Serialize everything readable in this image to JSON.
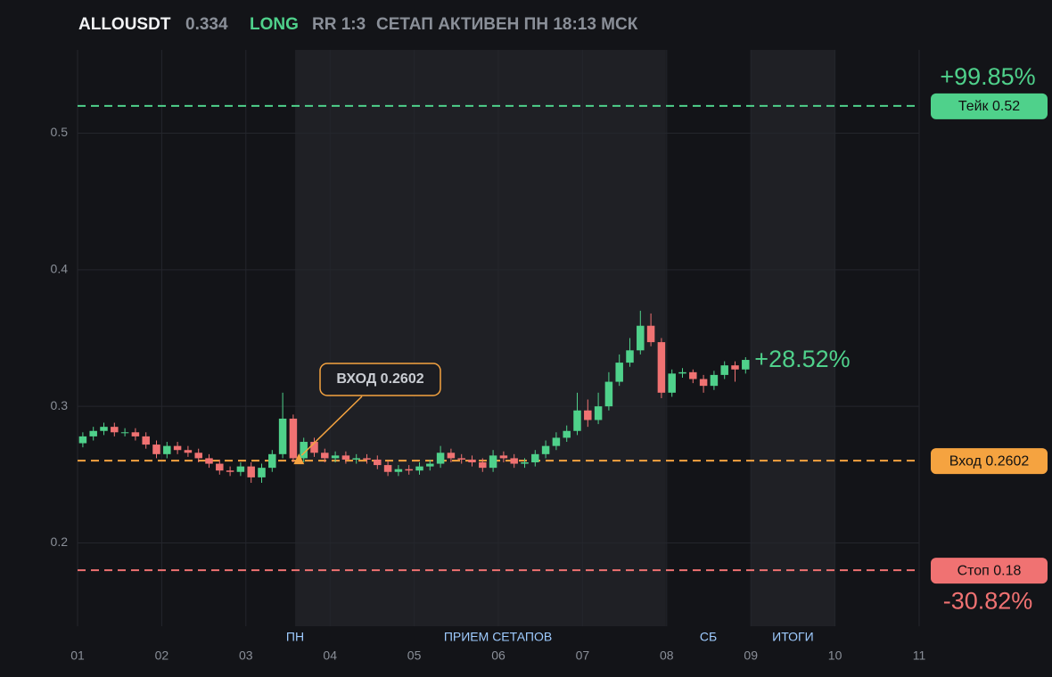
{
  "chart_data": {
    "type": "candlestick",
    "title": "ALLOUSDT",
    "last_price": 0.334,
    "side": "LONG",
    "rr": "RR 1:3",
    "status": "СЕТАП АКТИВЕН ПН 18:13 МСК",
    "up_color": "#4fd18b",
    "down_color": "#f07272",
    "xlim": [
      1,
      11
    ],
    "ylim": [
      0.139,
      0.561
    ],
    "xticks": [
      {
        "value": 1,
        "label": "01"
      },
      {
        "value": 2,
        "label": "02"
      },
      {
        "value": 3,
        "label": "03"
      },
      {
        "value": 4,
        "label": "04"
      },
      {
        "value": 5,
        "label": "05"
      },
      {
        "value": 6,
        "label": "06"
      },
      {
        "value": 7,
        "label": "07"
      },
      {
        "value": 8,
        "label": "08"
      },
      {
        "value": 9,
        "label": "09"
      },
      {
        "value": 10,
        "label": "10"
      },
      {
        "value": 11,
        "label": "11"
      }
    ],
    "yticks": [
      0.2,
      0.3,
      0.4,
      0.5
    ],
    "grid": true,
    "sessions": [
      {
        "label": "ПН",
        "from": 3.585,
        "to": 4.0,
        "shaded": true
      },
      {
        "label": "ПРИЕМ СЕТАПОВ",
        "from": 4.0,
        "to": 7.99,
        "shaded": true
      },
      {
        "label": "СБ",
        "from": 7.99,
        "to": 9.0,
        "shaded": false
      },
      {
        "label": "ИТОГИ",
        "from": 9.0,
        "to": 10.0,
        "shaded": true
      }
    ],
    "x": [
      1.0625,
      1.1875,
      1.3125,
      1.4375,
      1.5625,
      1.6875,
      1.8125,
      1.9375,
      2.0625,
      2.1875,
      2.3125,
      2.4375,
      2.5625,
      2.6875,
      2.8125,
      2.9375,
      3.0625,
      3.1875,
      3.3125,
      3.4375,
      3.5625,
      3.6875,
      3.8125,
      3.9375,
      4.0625,
      4.1875,
      4.3125,
      4.4375,
      4.5625,
      4.6875,
      4.8125,
      4.9375,
      5.0625,
      5.1875,
      5.3125,
      5.4375,
      5.5625,
      5.6875,
      5.8125,
      5.9375,
      6.0625,
      6.1875,
      6.3125,
      6.4375,
      6.5625,
      6.6875,
      6.8125,
      6.9375,
      7.0625,
      7.1875,
      7.3125,
      7.4375,
      7.5625,
      7.6875,
      7.8125,
      7.9375,
      8.0625,
      8.1875,
      8.3125,
      8.4375,
      8.5625,
      8.6875,
      8.8125,
      8.9375
    ],
    "open": [
      0.273,
      0.278,
      0.282,
      0.285,
      0.281,
      0.281,
      0.278,
      0.272,
      0.265,
      0.271,
      0.268,
      0.266,
      0.262,
      0.258,
      0.253,
      0.252,
      0.256,
      0.248,
      0.255,
      0.265,
      0.291,
      0.262,
      0.274,
      0.266,
      0.262,
      0.264,
      0.261,
      0.262,
      0.261,
      0.257,
      0.252,
      0.254,
      0.253,
      0.256,
      0.258,
      0.266,
      0.262,
      0.261,
      0.259,
      0.255,
      0.264,
      0.262,
      0.258,
      0.259,
      0.265,
      0.271,
      0.277,
      0.282,
      0.297,
      0.29,
      0.3,
      0.318,
      0.332,
      0.341,
      0.359,
      0.347,
      0.31,
      0.324,
      0.325,
      0.32,
      0.315,
      0.323,
      0.33,
      0.327
    ],
    "high": [
      0.281,
      0.285,
      0.288,
      0.288,
      0.284,
      0.284,
      0.281,
      0.275,
      0.274,
      0.274,
      0.271,
      0.269,
      0.265,
      0.261,
      0.256,
      0.259,
      0.259,
      0.258,
      0.268,
      0.31,
      0.294,
      0.277,
      0.277,
      0.269,
      0.267,
      0.267,
      0.265,
      0.265,
      0.264,
      0.26,
      0.257,
      0.257,
      0.259,
      0.261,
      0.271,
      0.269,
      0.265,
      0.264,
      0.262,
      0.268,
      0.267,
      0.265,
      0.262,
      0.268,
      0.275,
      0.281,
      0.286,
      0.31,
      0.305,
      0.31,
      0.325,
      0.338,
      0.35,
      0.37,
      0.368,
      0.35,
      0.327,
      0.328,
      0.327,
      0.323,
      0.326,
      0.333,
      0.333,
      0.336
    ],
    "low": [
      0.27,
      0.275,
      0.279,
      0.278,
      0.278,
      0.275,
      0.269,
      0.262,
      0.262,
      0.265,
      0.263,
      0.259,
      0.255,
      0.25,
      0.249,
      0.249,
      0.244,
      0.244,
      0.252,
      0.262,
      0.259,
      0.259,
      0.263,
      0.259,
      0.259,
      0.258,
      0.258,
      0.258,
      0.254,
      0.249,
      0.249,
      0.25,
      0.25,
      0.253,
      0.255,
      0.259,
      0.258,
      0.256,
      0.252,
      0.252,
      0.259,
      0.255,
      0.255,
      0.256,
      0.262,
      0.268,
      0.274,
      0.279,
      0.285,
      0.287,
      0.297,
      0.315,
      0.329,
      0.338,
      0.344,
      0.306,
      0.307,
      0.321,
      0.317,
      0.31,
      0.312,
      0.32,
      0.318,
      0.324
    ],
    "close": [
      0.278,
      0.282,
      0.285,
      0.281,
      0.281,
      0.278,
      0.272,
      0.265,
      0.271,
      0.268,
      0.266,
      0.262,
      0.258,
      0.253,
      0.252,
      0.256,
      0.248,
      0.255,
      0.265,
      0.291,
      0.262,
      0.274,
      0.266,
      0.262,
      0.264,
      0.261,
      0.262,
      0.261,
      0.257,
      0.252,
      0.254,
      0.253,
      0.256,
      0.258,
      0.266,
      0.262,
      0.261,
      0.259,
      0.255,
      0.264,
      0.262,
      0.258,
      0.259,
      0.265,
      0.271,
      0.277,
      0.282,
      0.297,
      0.29,
      0.3,
      0.318,
      0.332,
      0.341,
      0.359,
      0.347,
      0.31,
      0.324,
      0.325,
      0.32,
      0.315,
      0.323,
      0.33,
      0.327,
      0.334
    ],
    "levels": [
      {
        "value": 0.52,
        "label": "Тейк 0.52",
        "color": "#4fd18b",
        "change_label": "+99.85%"
      },
      {
        "value": 0.2602,
        "label": "Вход 0.2602",
        "color": "#f5a340"
      },
      {
        "value": 0.18,
        "label": "Стоп 0.18",
        "color": "#f07272",
        "change_label": "-30.82%"
      }
    ],
    "entry_marker": {
      "x": 3.63,
      "value": 0.2602,
      "label": "ВХОД 0.2602",
      "color": "#f5a340"
    },
    "current_change_label": "+28.52%"
  }
}
